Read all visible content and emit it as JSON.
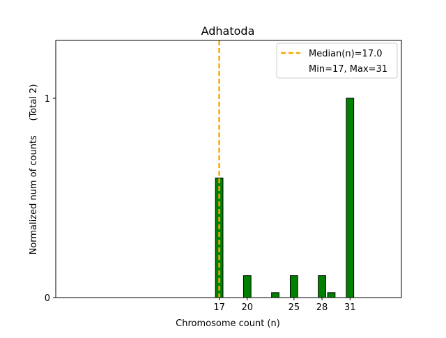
{
  "chart_data": {
    "type": "bar",
    "title": "Adhatoda",
    "xlabel": "Chromosome count (n)",
    "ylabel": "Normalized num of counts     (Total 2)",
    "x_ticks": [
      17,
      20,
      25,
      28,
      31
    ],
    "y_ticks": [
      0,
      1
    ],
    "xlim": [
      -0.5,
      36.5
    ],
    "ylim": [
      0,
      1.29
    ],
    "bar_color": "#008000",
    "bar_edge_color": "#000000",
    "bars": [
      {
        "x": 17,
        "value": 0.6
      },
      {
        "x": 20,
        "value": 0.11
      },
      {
        "x": 23,
        "value": 0.025
      },
      {
        "x": 25,
        "value": 0.11
      },
      {
        "x": 28,
        "value": 0.11
      },
      {
        "x": 29,
        "value": 0.025
      },
      {
        "x": 31,
        "value": 1.0
      }
    ],
    "median": {
      "x": 17.0,
      "color": "#FFA500"
    },
    "legend": {
      "position": "upper right",
      "entries": [
        "Median(n)=17.0",
        "Min=17, Max=31"
      ]
    },
    "grid": false
  }
}
